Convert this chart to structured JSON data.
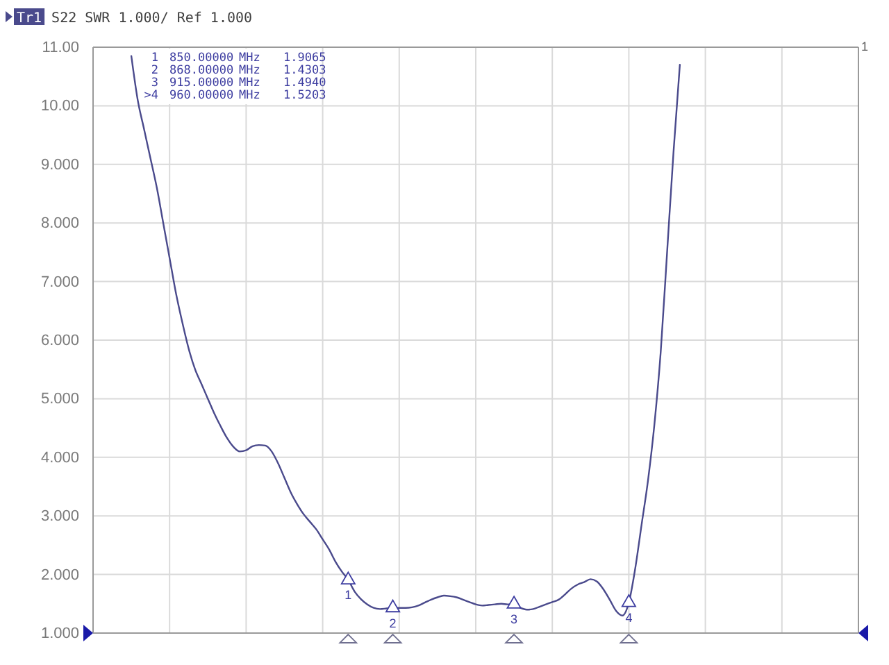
{
  "chart_data": {
    "type": "line",
    "title": "S22 SWR 1.000/ Ref 1.000",
    "categories": [
      null,
      null,
      null,
      null,
      null,
      null,
      null,
      null,
      null,
      null,
      null,
      null,
      null,
      null,
      null,
      null,
      null,
      null,
      null,
      null,
      null,
      null,
      null,
      null,
      null,
      null,
      null,
      null,
      null,
      null,
      null,
      null,
      null,
      null,
      null,
      null,
      null,
      null,
      null,
      null,
      null,
      null,
      null,
      null,
      null,
      null,
      null,
      null,
      null,
      null,
      null,
      null,
      null,
      null,
      null,
      null,
      null,
      null,
      null,
      null,
      null,
      null,
      null,
      null,
      null,
      null,
      null,
      null,
      null,
      null,
      null,
      null,
      null,
      null,
      null,
      null,
      null,
      null,
      null,
      null,
      null,
      null,
      null,
      null,
      null,
      null,
      null,
      null,
      null,
      null,
      null,
      null,
      null,
      null,
      null,
      null,
      null,
      null,
      null,
      null,
      null,
      null,
      null,
      null,
      null,
      null,
      null,
      null,
      null,
      null,
      null,
      null,
      null,
      null,
      null,
      null,
      null,
      null,
      null,
      null,
      null
    ],
    "ylim": [
      1,
      11
    ],
    "yticks": [
      {
        "value": 1,
        "label": "1.000"
      },
      {
        "value": 2,
        "label": "2.000"
      },
      {
        "value": 3,
        "label": "3.000"
      },
      {
        "value": 4,
        "label": "4.000"
      },
      {
        "value": 5,
        "label": "5.000"
      },
      {
        "value": 6,
        "label": "6.000"
      },
      {
        "value": 7,
        "label": "7.000"
      },
      {
        "value": 8,
        "label": "8.000"
      },
      {
        "value": 9,
        "label": "9.000"
      },
      {
        "value": 10,
        "label": "10.00"
      },
      {
        "value": 11,
        "label": "11.00"
      }
    ],
    "tick_labels": "y",
    "grid": true,
    "legend": "top left",
    "series": [
      {
        "name": "Tr1",
        "color": "#4a4a8c",
        "values": [
          null,
          null,
          null,
          null,
          null,
          null,
          10.85,
          10.1,
          9.6,
          9.1,
          8.6,
          8.0,
          7.4,
          6.8,
          6.3,
          5.85,
          5.5,
          5.25,
          5.0,
          4.75,
          4.53,
          4.33,
          4.18,
          4.1,
          4.12,
          4.19,
          4.21,
          4.2,
          4.1,
          3.9,
          3.65,
          3.4,
          3.2,
          3.03,
          2.9,
          2.77,
          2.6,
          2.43,
          2.22,
          2.05,
          1.91,
          1.71,
          1.58,
          1.49,
          1.43,
          1.41,
          1.42,
          1.43,
          1.43,
          1.43,
          1.44,
          1.47,
          1.52,
          1.57,
          1.61,
          1.64,
          1.63,
          1.61,
          1.57,
          1.53,
          1.49,
          1.47,
          1.48,
          1.49,
          1.5,
          1.49,
          1.49,
          1.43,
          1.4,
          1.41,
          1.45,
          1.49,
          1.53,
          1.57,
          1.66,
          1.76,
          1.83,
          1.87,
          1.92,
          1.88,
          1.75,
          1.57,
          1.38,
          1.3,
          1.52,
          2.1,
          2.85,
          3.6,
          4.55,
          5.8,
          7.5,
          9.2,
          10.7,
          null,
          null,
          null,
          null,
          null,
          null,
          null,
          null,
          null,
          null,
          null,
          null,
          null,
          null,
          null,
          null,
          null,
          null,
          null,
          null,
          null,
          null,
          null,
          null,
          null,
          null,
          null,
          null
        ]
      },
      {
        "type": "scatter",
        "name": "1",
        "color": "#3c3ca0",
        "marker": "triangle",
        "values": [
          null,
          null,
          null,
          null,
          null,
          null,
          null,
          null,
          null,
          null,
          null,
          null,
          null,
          null,
          null,
          null,
          null,
          null,
          null,
          null,
          null,
          null,
          null,
          null,
          null,
          null,
          null,
          null,
          null,
          null,
          null,
          null,
          null,
          null,
          null,
          null,
          null,
          null,
          null,
          null,
          1.9065,
          null,
          null,
          null,
          null,
          null,
          null,
          null,
          null,
          null,
          null,
          null,
          null,
          null,
          null,
          null,
          null,
          null,
          null,
          null,
          null,
          null,
          null,
          null,
          null,
          null,
          null,
          null,
          null,
          null,
          null,
          null,
          null,
          null,
          null,
          null,
          null,
          null,
          null,
          null,
          null,
          null,
          null,
          null,
          null,
          null,
          null,
          null,
          null,
          null,
          null,
          null,
          null,
          null,
          null,
          null,
          null,
          null,
          null,
          null,
          null,
          null,
          null,
          null,
          null,
          null,
          null,
          null,
          null,
          null,
          null,
          null,
          null,
          null,
          null,
          null,
          null,
          null,
          null,
          null,
          null
        ]
      },
      {
        "type": "scatter",
        "name": "2",
        "color": "#3c3ca0",
        "marker": "triangle",
        "values": [
          null,
          null,
          null,
          null,
          null,
          null,
          null,
          null,
          null,
          null,
          null,
          null,
          null,
          null,
          null,
          null,
          null,
          null,
          null,
          null,
          null,
          null,
          null,
          null,
          null,
          null,
          null,
          null,
          null,
          null,
          null,
          null,
          null,
          null,
          null,
          null,
          null,
          null,
          null,
          null,
          null,
          null,
          null,
          null,
          null,
          null,
          null,
          1.4303,
          null,
          null,
          null,
          null,
          null,
          null,
          null,
          null,
          null,
          null,
          null,
          null,
          null,
          null,
          null,
          null,
          null,
          null,
          null,
          null,
          null,
          null,
          null,
          null,
          null,
          null,
          null,
          null,
          null,
          null,
          null,
          null,
          null,
          null,
          null,
          null,
          null,
          null,
          null,
          null,
          null,
          null,
          null,
          null,
          null,
          null,
          null,
          null,
          null,
          null,
          null,
          null,
          null,
          null,
          null,
          null,
          null,
          null,
          null,
          null,
          null,
          null,
          null,
          null,
          null,
          null,
          null,
          null,
          null,
          null,
          null,
          null,
          null
        ]
      },
      {
        "type": "scatter",
        "name": "3",
        "color": "#3c3ca0",
        "marker": "triangle",
        "values": [
          null,
          null,
          null,
          null,
          null,
          null,
          null,
          null,
          null,
          null,
          null,
          null,
          null,
          null,
          null,
          null,
          null,
          null,
          null,
          null,
          null,
          null,
          null,
          null,
          null,
          null,
          null,
          null,
          null,
          null,
          null,
          null,
          null,
          null,
          null,
          null,
          null,
          null,
          null,
          null,
          null,
          null,
          null,
          null,
          null,
          null,
          null,
          null,
          null,
          null,
          null,
          null,
          null,
          null,
          null,
          null,
          null,
          null,
          null,
          null,
          null,
          null,
          null,
          null,
          null,
          null,
          1.494,
          null,
          null,
          null,
          null,
          null,
          null,
          null,
          null,
          null,
          null,
          null,
          null,
          null,
          null,
          null,
          null,
          null,
          null,
          null,
          null,
          null,
          null,
          null,
          null,
          null,
          null,
          null,
          null,
          null,
          null,
          null,
          null,
          null,
          null,
          null,
          null,
          null,
          null,
          null,
          null,
          null,
          null,
          null,
          null,
          null,
          null,
          null,
          null,
          null,
          null,
          null,
          null,
          null,
          null
        ]
      },
      {
        "type": "scatter",
        "name": "4",
        "color": "#3c3ca0",
        "marker": "triangle",
        "values": [
          null,
          null,
          null,
          null,
          null,
          null,
          null,
          null,
          null,
          null,
          null,
          null,
          null,
          null,
          null,
          null,
          null,
          null,
          null,
          null,
          null,
          null,
          null,
          null,
          null,
          null,
          null,
          null,
          null,
          null,
          null,
          null,
          null,
          null,
          null,
          null,
          null,
          null,
          null,
          null,
          null,
          null,
          null,
          null,
          null,
          null,
          null,
          null,
          null,
          null,
          null,
          null,
          null,
          null,
          null,
          null,
          null,
          null,
          null,
          null,
          null,
          null,
          null,
          null,
          null,
          null,
          null,
          null,
          null,
          null,
          null,
          null,
          null,
          null,
          null,
          null,
          null,
          null,
          null,
          null,
          null,
          null,
          null,
          null,
          1.5203,
          null,
          null,
          null,
          null,
          null,
          null,
          null,
          null,
          null,
          null,
          null,
          null,
          null,
          null,
          null,
          null,
          null,
          null,
          null,
          null,
          null,
          null,
          null,
          null,
          null,
          null,
          null,
          null,
          null,
          null,
          null,
          null,
          null,
          null,
          null,
          null
        ]
      }
    ],
    "annotations": [
      "1 850.00000 MHz 1.9065",
      "2 868.00000 MHz 1.4303",
      "3 915.00000 MHz 1.4940",
      ">4 960.00000 MHz 1.5203",
      "1"
    ]
  }
}
